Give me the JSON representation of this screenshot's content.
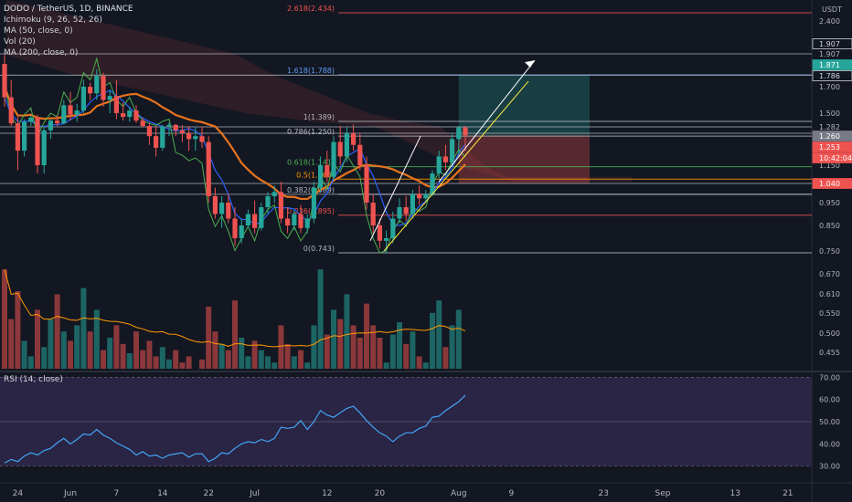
{
  "legend": {
    "title": "DODO / TetherUS, 1D, BINANCE",
    "indicators": [
      "Ichimoku (9, 26, 52, 26)",
      "MA (50, close, 0)",
      "Vol (20)",
      "MA (200, close, 0)"
    ]
  },
  "rsi_label": "RSI (14, close)",
  "chart_data": {
    "type": "candlestick",
    "currency": "USDT",
    "colors": {
      "up": "#26a69a",
      "down": "#ef5350",
      "bg": "#131722",
      "grid": "#2a2e39",
      "text": "#b2b5be"
    },
    "price_axis_ticks": [
      "2.400",
      "1.907",
      "1.700",
      "1.500",
      "1.282",
      "1.150",
      "0.950",
      "0.850",
      "0.750",
      "0.670",
      "0.610",
      "0.550",
      "0.500",
      "0.455"
    ],
    "price_labels": [
      {
        "text": "1.907",
        "value": 1.907,
        "style": "outline"
      },
      {
        "text": "1.871",
        "value": 1.871,
        "style": "green"
      },
      {
        "text": "1.786",
        "value": 1.786,
        "style": "outline"
      },
      {
        "text": "1.260",
        "value": 1.26,
        "style": "gray"
      },
      {
        "text": "1.253",
        "value": 1.253,
        "style": "red"
      },
      {
        "text": "10:42:04",
        "value": 1.215,
        "style": "red"
      },
      {
        "text": "1.040",
        "value": 1.04,
        "style": "red"
      }
    ],
    "fib_levels": [
      {
        "text": "2.618(2.434)",
        "value": 2.434,
        "color": "#ef5350"
      },
      {
        "text": "1.618(1.788)",
        "value": 1.788,
        "color": "#5b9cf6"
      },
      {
        "text": "1(1.389)",
        "value": 1.389,
        "color": "#b2b5be"
      },
      {
        "text": "0.786(1.250)",
        "value": 1.25,
        "color": "#b2b5be"
      },
      {
        "text": "0.618(1.141)",
        "value": 1.141,
        "color": "#4caf50"
      },
      {
        "text": "0.5(1.066)",
        "value": 1.066,
        "color": "#ff9800"
      },
      {
        "text": "0.382(0.989)",
        "value": 0.989,
        "color": "#b2b5be"
      },
      {
        "text": "0.236(0.895)",
        "value": 0.895,
        "color": "#ef5350"
      },
      {
        "text": "0(0.743)",
        "value": 0.743,
        "color": "#b2b5be"
      }
    ],
    "x_ticks": [
      {
        "text": "24",
        "index": 2
      },
      {
        "text": "Jun",
        "index": 10
      },
      {
        "text": "7",
        "index": 17
      },
      {
        "text": "14",
        "index": 24
      },
      {
        "text": "22",
        "index": 31
      },
      {
        "text": "Jul",
        "index": 38
      },
      {
        "text": "12",
        "index": 49
      },
      {
        "text": "20",
        "index": 57
      },
      {
        "text": "Aug",
        "index": 69
      },
      {
        "text": "9",
        "index": 77
      },
      {
        "text": "23",
        "index": 91
      },
      {
        "text": "Sep",
        "index": 100
      },
      {
        "text": "13",
        "index": 111
      },
      {
        "text": "21",
        "index": 119
      }
    ],
    "volume_axis_ticks": [],
    "rsi_axis_ticks": [
      "70.00",
      "60.00",
      "50.00",
      "40.00",
      "30.00"
    ],
    "rsi_bands": [
      70,
      30
    ],
    "rsi_mid": 50,
    "ohlc": [
      [
        1.85,
        1.9,
        1.55,
        1.62
      ],
      [
        1.62,
        1.75,
        1.3,
        1.35
      ],
      [
        1.35,
        1.45,
        1.12,
        1.2
      ],
      [
        1.2,
        1.42,
        1.18,
        1.38
      ],
      [
        1.38,
        1.47,
        1.3,
        1.44
      ],
      [
        1.44,
        1.48,
        1.1,
        1.15
      ],
      [
        1.15,
        1.3,
        1.1,
        1.27
      ],
      [
        1.27,
        1.42,
        1.24,
        1.4
      ],
      [
        1.4,
        1.47,
        1.3,
        1.35
      ],
      [
        1.35,
        1.6,
        1.33,
        1.56
      ],
      [
        1.56,
        1.66,
        1.4,
        1.48
      ],
      [
        1.48,
        1.57,
        1.38,
        1.52
      ],
      [
        1.52,
        1.75,
        1.5,
        1.7
      ],
      [
        1.7,
        1.73,
        1.6,
        1.65
      ],
      [
        1.65,
        1.82,
        1.6,
        1.78
      ],
      [
        1.78,
        1.8,
        1.55,
        1.6
      ],
      [
        1.6,
        1.68,
        1.5,
        1.63
      ],
      [
        1.63,
        1.75,
        1.42,
        1.5
      ],
      [
        1.5,
        1.58,
        1.4,
        1.45
      ],
      [
        1.45,
        1.55,
        1.38,
        1.52
      ],
      [
        1.52,
        1.56,
        1.36,
        1.4
      ],
      [
        1.4,
        1.44,
        1.28,
        1.3
      ],
      [
        1.3,
        1.36,
        1.22,
        1.25
      ],
      [
        1.25,
        1.3,
        1.18,
        1.21
      ],
      [
        1.21,
        1.32,
        1.2,
        1.29
      ],
      [
        1.29,
        1.36,
        1.25,
        1.32
      ],
      [
        1.32,
        1.34,
        1.25,
        1.27
      ],
      [
        1.27,
        1.32,
        1.23,
        1.26
      ],
      [
        1.26,
        1.3,
        1.2,
        1.24
      ],
      [
        1.24,
        1.28,
        1.2,
        1.25
      ],
      [
        1.25,
        1.29,
        1.21,
        1.23
      ],
      [
        1.23,
        1.25,
        0.95,
        0.98
      ],
      [
        0.98,
        1.02,
        0.88,
        0.9
      ],
      [
        0.9,
        0.98,
        0.84,
        0.95
      ],
      [
        0.95,
        0.99,
        0.86,
        0.88
      ],
      [
        0.88,
        0.93,
        0.77,
        0.8
      ],
      [
        0.8,
        0.88,
        0.78,
        0.85
      ],
      [
        0.85,
        0.92,
        0.84,
        0.9
      ],
      [
        0.9,
        0.96,
        0.82,
        0.84
      ],
      [
        0.84,
        0.95,
        0.83,
        0.93
      ],
      [
        0.93,
        1.0,
        0.9,
        0.98
      ],
      [
        0.98,
        1.03,
        0.95,
        1.0
      ],
      [
        1.0,
        1.05,
        0.86,
        0.88
      ],
      [
        0.88,
        0.93,
        0.82,
        0.85
      ],
      [
        0.85,
        0.92,
        0.83,
        0.9
      ],
      [
        0.9,
        0.94,
        0.82,
        0.84
      ],
      [
        0.84,
        0.9,
        0.82,
        0.88
      ],
      [
        0.88,
        1.05,
        0.86,
        1.02
      ],
      [
        1.02,
        1.18,
        1.0,
        1.15
      ],
      [
        1.15,
        1.2,
        1.05,
        1.08
      ],
      [
        1.08,
        1.25,
        1.06,
        1.23
      ],
      [
        1.23,
        1.3,
        1.15,
        1.18
      ],
      [
        1.18,
        1.28,
        1.16,
        1.26
      ],
      [
        1.26,
        1.33,
        1.2,
        1.22
      ],
      [
        1.22,
        1.26,
        1.12,
        1.15
      ],
      [
        1.15,
        1.18,
        0.92,
        0.95
      ],
      [
        0.95,
        0.99,
        0.82,
        0.85
      ],
      [
        0.85,
        0.88,
        0.76,
        0.79
      ],
      [
        0.79,
        0.83,
        0.74,
        0.8
      ],
      [
        0.8,
        0.91,
        0.78,
        0.88
      ],
      [
        0.88,
        0.97,
        0.86,
        0.93
      ],
      [
        0.93,
        0.98,
        0.87,
        0.9
      ],
      [
        0.9,
        1.01,
        0.88,
        0.99
      ],
      [
        0.99,
        1.03,
        0.94,
        0.97
      ],
      [
        0.97,
        1.01,
        0.95,
        0.99
      ],
      [
        0.99,
        1.12,
        0.98,
        1.1
      ],
      [
        1.1,
        1.2,
        1.07,
        1.18
      ],
      [
        1.18,
        1.22,
        1.12,
        1.16
      ],
      [
        1.16,
        1.26,
        1.14,
        1.24
      ],
      [
        1.24,
        1.3,
        1.18,
        1.28
      ],
      [
        1.28,
        1.3,
        1.2,
        1.253
      ]
    ],
    "volume": [
      0.68,
      0.52,
      0.61,
      0.45,
      0.4,
      0.55,
      0.43,
      0.52,
      0.6,
      0.48,
      0.45,
      0.5,
      0.62,
      0.48,
      0.55,
      0.42,
      0.46,
      0.5,
      0.44,
      0.41,
      0.48,
      0.42,
      0.45,
      0.4,
      0.43,
      0.39,
      0.42,
      0.38,
      0.4,
      0.36,
      0.39,
      0.56,
      0.48,
      0.44,
      0.42,
      0.58,
      0.46,
      0.4,
      0.45,
      0.42,
      0.4,
      0.38,
      0.5,
      0.44,
      0.4,
      0.42,
      0.38,
      0.5,
      0.68,
      0.47,
      0.55,
      0.52,
      0.6,
      0.5,
      0.46,
      0.57,
      0.5,
      0.46,
      0.38,
      0.47,
      0.51,
      0.44,
      0.48,
      0.4,
      0.38,
      0.54,
      0.58,
      0.43,
      0.5,
      0.55,
      0.36
    ],
    "rsi": [
      31.4,
      33.0,
      32.0,
      34.5,
      36.0,
      35.0,
      37.0,
      38.0,
      40.5,
      42.5,
      40.0,
      42.0,
      44.5,
      44.0,
      46.5,
      44.0,
      42.5,
      40.5,
      39.0,
      37.5,
      35.0,
      36.5,
      34.5,
      35.0,
      33.5,
      35.0,
      35.5,
      36.0,
      34.0,
      35.5,
      35.5,
      32.0,
      33.5,
      36.0,
      35.5,
      38.0,
      40.0,
      41.0,
      40.5,
      42.0,
      41.0,
      42.5,
      47.5,
      47.0,
      47.5,
      50.5,
      46.5,
      50.0,
      55.0,
      53.0,
      52.0,
      54.0,
      56.0,
      57.0,
      54.0,
      50.5,
      47.5,
      45.0,
      43.5,
      41.0,
      43.5,
      45.0,
      45.0,
      47.0,
      48.0,
      52.0,
      52.5,
      55.0,
      57.0,
      59.0,
      62.0
    ]
  }
}
